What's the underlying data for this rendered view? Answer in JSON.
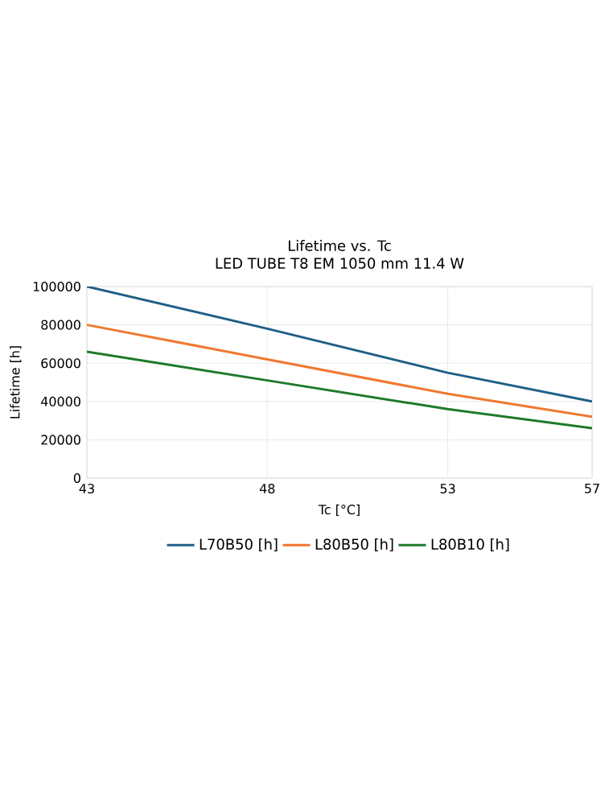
{
  "chart_data": {
    "type": "line",
    "title": "Lifetime vs. Tc",
    "subtitle": "LED TUBE T8 EM 1050 mm 11.4 W",
    "xlabel": "Tc [°C]",
    "ylabel": "Lifetime [h]",
    "x": [
      43,
      48,
      53,
      57
    ],
    "series": [
      {
        "name": "L70B50 [h]",
        "color": "#1f5f86",
        "values": [
          100000,
          78000,
          55000,
          40000
        ]
      },
      {
        "name": "L80B50 [h]",
        "color": "#f07830",
        "values": [
          80000,
          62000,
          44000,
          32000
        ]
      },
      {
        "name": "L80B10 [h]",
        "color": "#1e7a2a",
        "values": [
          66000,
          51000,
          36000,
          26000
        ]
      }
    ],
    "xlim": [
      43,
      57
    ],
    "xticks": [
      43,
      48,
      53,
      57
    ],
    "ylim": [
      0,
      100000
    ],
    "yticks": [
      0,
      20000,
      40000,
      60000,
      80000,
      100000
    ],
    "grid": true,
    "legend": "bottom",
    "marker": "none",
    "line_style": "solid"
  }
}
